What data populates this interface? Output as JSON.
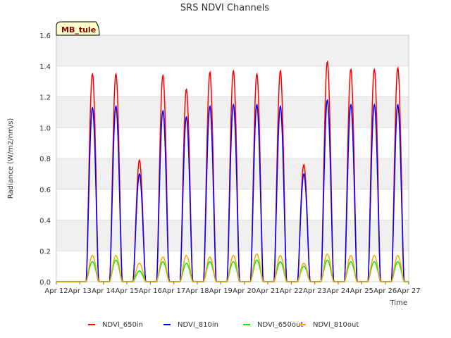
{
  "chart_data": {
    "type": "line",
    "title": "SRS NDVI Channels",
    "xlabel": "Time",
    "ylabel": "Radiance (W/m2/nm/s)",
    "site_label": "MB_tule",
    "ylim": [
      0.0,
      1.6
    ],
    "yticks": [
      "0.0",
      "0.2",
      "0.4",
      "0.6",
      "0.8",
      "1.0",
      "1.2",
      "1.4",
      "1.6"
    ],
    "xlim": [
      "Apr 12",
      "Apr 27"
    ],
    "xticks": [
      "Apr 12",
      "Apr 13",
      "Apr 14",
      "Apr 15",
      "Apr 16",
      "Apr 17",
      "Apr 18",
      "Apr 19",
      "Apr 20",
      "Apr 21",
      "Apr 22",
      "Apr 23",
      "Apr 24",
      "Apr 25",
      "Apr 26",
      "Apr 27"
    ],
    "grid": true,
    "legend_position": "bottom",
    "days": [
      "Apr 12",
      "Apr 13",
      "Apr 14",
      "Apr 15",
      "Apr 16",
      "Apr 17",
      "Apr 18",
      "Apr 19",
      "Apr 20",
      "Apr 21",
      "Apr 22",
      "Apr 23",
      "Apr 24",
      "Apr 25",
      "Apr 26"
    ],
    "series": [
      {
        "name": "NDVI_650in",
        "color": "#ff0000",
        "daily_peak": [
          0.0,
          1.35,
          1.35,
          0.79,
          1.34,
          1.25,
          1.36,
          1.37,
          1.35,
          1.37,
          0.76,
          1.43,
          1.38,
          1.38,
          1.39
        ]
      },
      {
        "name": "NDVI_810in",
        "color": "#0000ff",
        "daily_peak": [
          0.0,
          1.13,
          1.14,
          0.7,
          1.11,
          1.07,
          1.14,
          1.15,
          1.15,
          1.14,
          0.7,
          1.18,
          1.15,
          1.15,
          1.15
        ]
      },
      {
        "name": "NDVI_650out",
        "color": "#00ee00",
        "daily_peak": [
          0.0,
          0.13,
          0.14,
          0.07,
          0.13,
          0.12,
          0.13,
          0.13,
          0.14,
          0.13,
          0.1,
          0.14,
          0.13,
          0.13,
          0.13
        ]
      },
      {
        "name": "NDVI_810out",
        "color": "#ffa500",
        "daily_peak": [
          0.0,
          0.17,
          0.17,
          0.12,
          0.16,
          0.17,
          0.16,
          0.17,
          0.18,
          0.17,
          0.12,
          0.18,
          0.17,
          0.17,
          0.17
        ]
      }
    ]
  }
}
